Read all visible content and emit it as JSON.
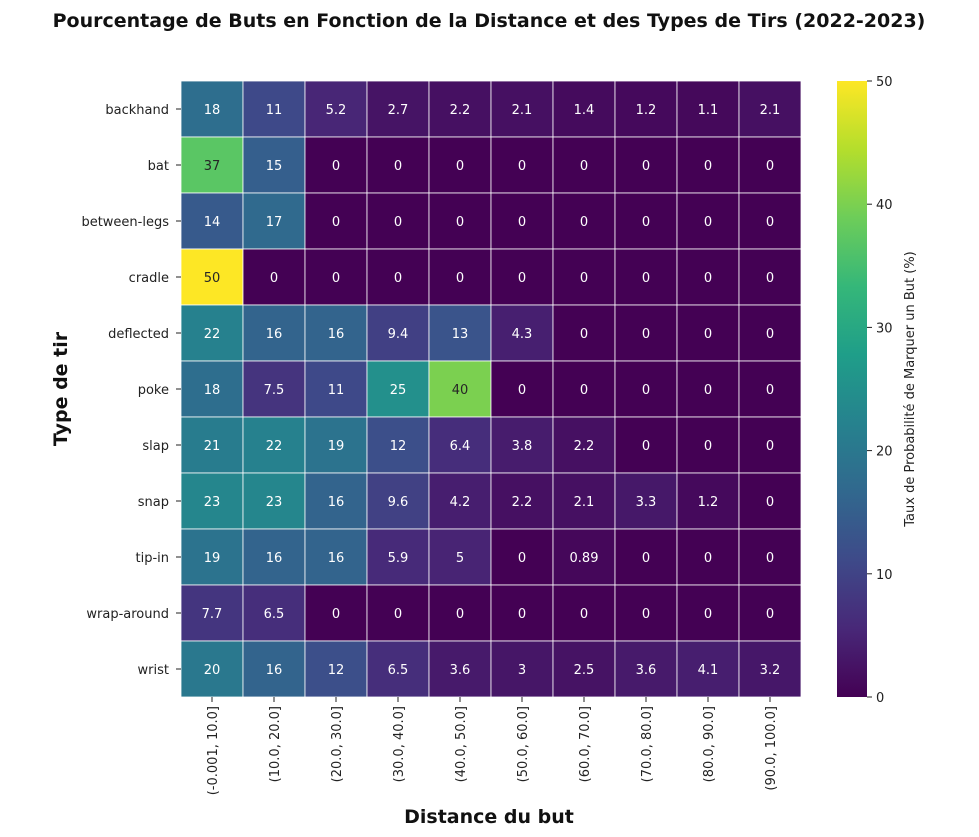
{
  "chart_data": {
    "type": "heatmap",
    "title": "Pourcentage de Buts en Fonction de la Distance et des Types de Tirs (2022-2023)",
    "xlabel": "Distance du but",
    "ylabel": "Type de tir",
    "colorbar_label": "Taux de Probabilité de Marquer un But (%)",
    "colormap": "viridis",
    "vmin": 0,
    "vmax": 50,
    "colorbar_ticks": [
      "0",
      "10",
      "20",
      "30",
      "40",
      "50"
    ],
    "x_categories": [
      "(-0.001, 10.0]",
      "(10.0, 20.0]",
      "(20.0, 30.0]",
      "(30.0, 40.0]",
      "(40.0, 50.0]",
      "(50.0, 60.0]",
      "(60.0, 70.0]",
      "(70.0, 80.0]",
      "(80.0, 90.0]",
      "(90.0, 100.0]"
    ],
    "y_categories": [
      "backhand",
      "bat",
      "between-legs",
      "cradle",
      "deflected",
      "poke",
      "slap",
      "snap",
      "tip-in",
      "wrap-around",
      "wrist"
    ],
    "values": [
      [
        18,
        11,
        5.2,
        2.7,
        2.2,
        2.1,
        1.4,
        1.2,
        1.1,
        2.1
      ],
      [
        37,
        15,
        0,
        0,
        0,
        0,
        0,
        0,
        0,
        0
      ],
      [
        14,
        17,
        0,
        0,
        0,
        0,
        0,
        0,
        0,
        0
      ],
      [
        50,
        0,
        0,
        0,
        0,
        0,
        0,
        0,
        0,
        0
      ],
      [
        22,
        16,
        16,
        9.4,
        13,
        4.3,
        0,
        0,
        0,
        0
      ],
      [
        18,
        7.5,
        11,
        25,
        40,
        0,
        0,
        0,
        0,
        0
      ],
      [
        21,
        22,
        19,
        12,
        6.4,
        3.8,
        2.2,
        0,
        0,
        0
      ],
      [
        23,
        23,
        16,
        9.6,
        4.2,
        2.2,
        2.1,
        3.3,
        1.2,
        0
      ],
      [
        19,
        16,
        16,
        5.9,
        5,
        0,
        0.89,
        0,
        0,
        0
      ],
      [
        7.7,
        6.5,
        0,
        0,
        0,
        0,
        0,
        0,
        0,
        0
      ],
      [
        20,
        16,
        12,
        6.5,
        3.6,
        3,
        2.5,
        3.6,
        4.1,
        3.2
      ]
    ]
  }
}
